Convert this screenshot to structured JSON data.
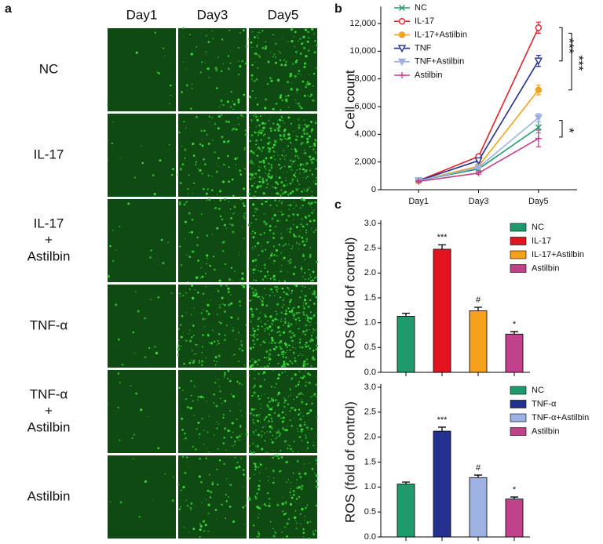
{
  "panel_labels": [
    "a",
    "b",
    "c"
  ],
  "image_grid": {
    "columns": [
      "Day1",
      "Day3",
      "Day5"
    ],
    "rows": [
      [
        "NC"
      ],
      [
        "IL-17"
      ],
      [
        "IL-17",
        "+",
        "Astilbin"
      ],
      [
        "TNF-α"
      ],
      [
        "TNF-α",
        "+",
        "Astilbin"
      ],
      [
        "Astilbin"
      ]
    ]
  },
  "chart_data": [
    {
      "type": "line",
      "ylabel": "Cell count",
      "categories": [
        "Day1",
        "Day3",
        "Day5"
      ],
      "ylim": [
        0,
        13000
      ],
      "yticks": [
        0,
        {
          "value": 2000,
          "label": "2,000"
        },
        {
          "value": 4000,
          "label": "4,000"
        },
        {
          "value": 6000,
          "label": "6,000"
        },
        {
          "value": 8000,
          "label": "8,000"
        },
        {
          "value": 10000,
          "label": "10,000"
        },
        {
          "value": 12000,
          "label": "12,000"
        }
      ],
      "series": [
        {
          "name": "NC",
          "color": "#1f9a6a",
          "marker": "x",
          "values": [
            650,
            1500,
            4500
          ],
          "errors": [
            60,
            100,
            400
          ]
        },
        {
          "name": "IL-17",
          "color": "#e3232c",
          "marker": "circle-open",
          "values": [
            650,
            2400,
            11700
          ],
          "errors": [
            60,
            120,
            400
          ]
        },
        {
          "name": "IL-17+Astilbin",
          "color": "#f2a21c",
          "marker": "circle",
          "values": [
            650,
            1700,
            7200
          ],
          "errors": [
            60,
            100,
            350
          ]
        },
        {
          "name": "TNF",
          "color": "#25318f",
          "marker": "triangle-down-open",
          "values": [
            650,
            2100,
            9300
          ],
          "errors": [
            60,
            110,
            400
          ]
        },
        {
          "name": "TNF+Astilbin",
          "color": "#9db2e2",
          "marker": "triangle-down",
          "values": [
            650,
            1600,
            5200
          ],
          "errors": [
            60,
            100,
            300
          ]
        },
        {
          "name": "Astilbin",
          "color": "#c2418b",
          "marker": "plus",
          "values": [
            600,
            1200,
            3700
          ],
          "errors": [
            60,
            100,
            600
          ]
        }
      ],
      "annotations": [
        "***",
        "***",
        "*"
      ]
    },
    {
      "type": "bar",
      "ylabel": "ROS (fold of control)",
      "categories": [
        "NC",
        "IL-17",
        "IL-17+Astilbin",
        "Astilbin"
      ],
      "colors": [
        "#1f9a6a",
        "#e3141f",
        "#f5a11b",
        "#c2418b"
      ],
      "values": [
        1.13,
        2.48,
        1.24,
        0.77
      ],
      "errors": [
        0.06,
        0.09,
        0.07,
        0.05
      ],
      "annotations": [
        null,
        "***",
        "#",
        "*"
      ],
      "ylim": [
        0,
        3
      ],
      "yticks": [
        {
          "value": 0,
          "label": "0.0"
        },
        {
          "value": 0.5,
          "label": "0.5"
        },
        {
          "value": 1,
          "label": "1.0"
        },
        {
          "value": 1.5,
          "label": "1.5"
        },
        {
          "value": 2,
          "label": "2.0"
        },
        {
          "value": 2.5,
          "label": "2.5"
        },
        {
          "value": 3,
          "label": "3.0"
        }
      ]
    },
    {
      "type": "bar",
      "ylabel": "ROS (fold of control)",
      "categories": [
        "NC",
        "TNF-α",
        "TNF-α+Astilbin",
        "Astilbin"
      ],
      "colors": [
        "#1f9a6a",
        "#25318f",
        "#9db2e2",
        "#c2418b"
      ],
      "values": [
        1.06,
        2.12,
        1.19,
        0.76
      ],
      "errors": [
        0.04,
        0.08,
        0.05,
        0.04
      ],
      "annotations": [
        null,
        "***",
        "#",
        "*"
      ],
      "ylim": [
        0,
        3
      ],
      "yticks": [
        {
          "value": 0,
          "label": "0.0"
        },
        {
          "value": 0.5,
          "label": "0.5"
        },
        {
          "value": 1,
          "label": "1.0"
        },
        {
          "value": 1.5,
          "label": "1.5"
        },
        {
          "value": 2,
          "label": "2.0"
        },
        {
          "value": 2.5,
          "label": "2.5"
        },
        {
          "value": 3,
          "label": "3.0"
        }
      ]
    }
  ]
}
